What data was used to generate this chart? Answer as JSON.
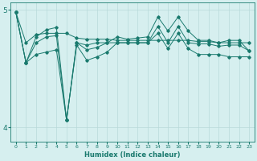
{
  "xlabel": "Humidex (Indice chaleur)",
  "ylabel": "",
  "bg_color": "#d6efef",
  "line_color": "#1a7a6e",
  "grid_color": "#b8dada",
  "xlim": [
    -0.5,
    23.5
  ],
  "ylim": [
    3.88,
    5.06
  ],
  "yticks": [
    4,
    5
  ],
  "xticks": [
    0,
    1,
    2,
    3,
    4,
    5,
    6,
    7,
    8,
    9,
    10,
    11,
    12,
    13,
    14,
    15,
    16,
    17,
    18,
    19,
    20,
    21,
    22,
    23
  ],
  "series": [
    [
      4.98,
      4.55,
      4.72,
      4.77,
      4.78,
      4.06,
      4.72,
      4.7,
      4.72,
      4.72,
      4.72,
      4.72,
      4.72,
      4.72,
      4.86,
      4.72,
      4.86,
      4.72,
      4.71,
      4.71,
      4.69,
      4.7,
      4.7,
      4.65
    ],
    [
      4.98,
      4.55,
      4.77,
      4.83,
      4.85,
      4.06,
      4.72,
      4.66,
      4.68,
      4.72,
      4.77,
      4.75,
      4.76,
      4.77,
      4.94,
      4.82,
      4.94,
      4.82,
      4.74,
      4.74,
      4.72,
      4.74,
      4.74,
      4.65
    ],
    [
      4.98,
      4.72,
      4.79,
      4.8,
      4.8,
      4.8,
      4.76,
      4.75,
      4.75,
      4.75,
      4.74,
      4.74,
      4.74,
      4.74,
      4.74,
      4.74,
      4.74,
      4.74,
      4.73,
      4.73,
      4.72,
      4.72,
      4.72,
      4.72
    ],
    [
      4.98,
      4.55,
      4.62,
      4.64,
      4.66,
      4.06,
      4.7,
      4.57,
      4.6,
      4.64,
      4.72,
      4.72,
      4.72,
      4.72,
      4.8,
      4.67,
      4.8,
      4.67,
      4.62,
      4.62,
      4.62,
      4.6,
      4.6,
      4.6
    ]
  ]
}
